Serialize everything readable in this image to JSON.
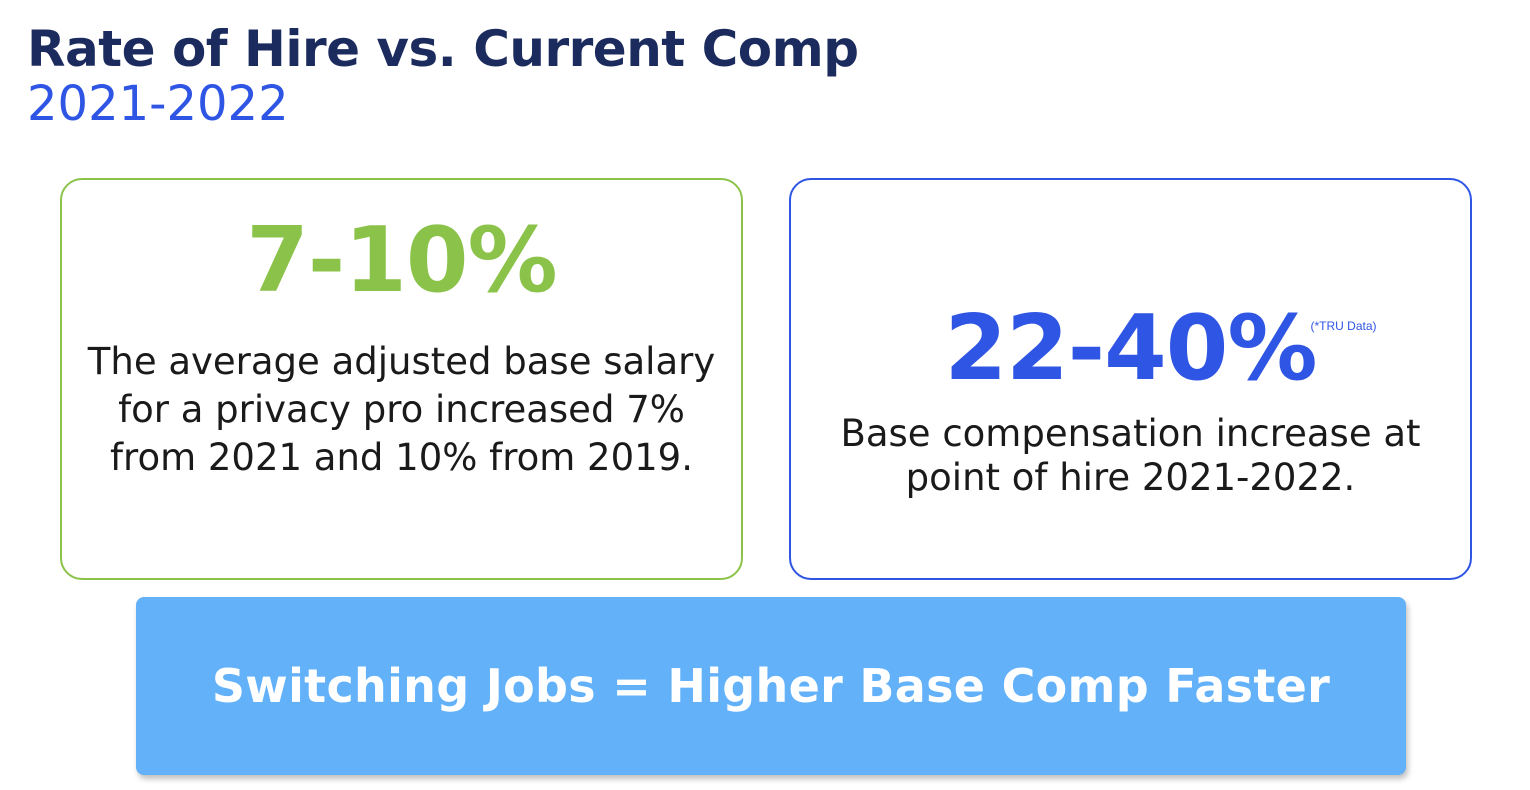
{
  "header": {
    "title": "Rate of Hire vs. Current Comp",
    "subtitle": "2021-2022"
  },
  "cards": [
    {
      "stat": "7-10%",
      "description": "The average adjusted base salary for a privacy pro increased 7% from 2021 and 10% from 2019."
    },
    {
      "stat": "22-40%",
      "footnote": "(*TRU Data)",
      "description": "Base compensation increase at point of hire 2021-2022."
    }
  ],
  "banner": {
    "text": "Switching Jobs = Higher Base Comp Faster"
  },
  "colors": {
    "title": "#1b2b5e",
    "accent_blue": "#2f55e4",
    "accent_green": "#8bc34a",
    "banner": "#62b1f9"
  }
}
